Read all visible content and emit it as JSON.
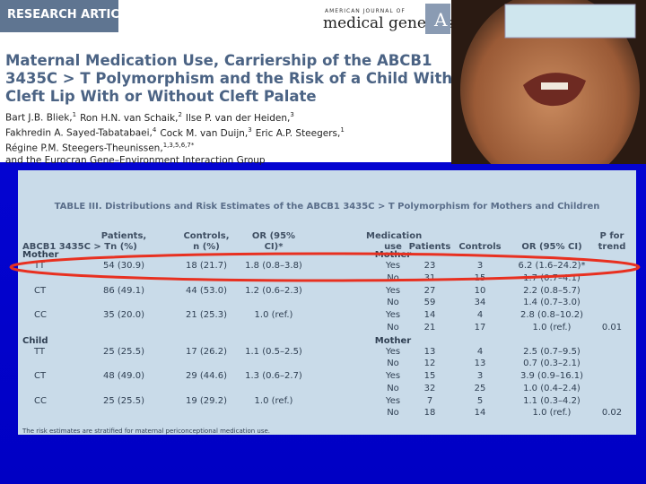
{
  "header": {
    "article_type": "RESEARCH ARTICLE",
    "journal_prefix": "AMERICAN JOURNAL OF",
    "journal_name": "medical genetics",
    "journal_part": "A",
    "title_lines": [
      "Maternal Medication Use, Carriership of the ABCB1",
      "3435C > T Polymorphism and the Risk of a Child With",
      "Cleft Lip With or Without Cleft Palate"
    ],
    "author_lines": [
      [
        {
          "name": "Bart J.B. Bliek,",
          "aff": "1"
        },
        {
          "name": "Ron H.N. van Schaik,",
          "aff": "2"
        },
        {
          "name": "Ilse P. van der Heiden,",
          "aff": "3"
        }
      ],
      [
        {
          "name": "Fakhredin A. Sayed-Tabatabaei,",
          "aff": "4"
        },
        {
          "name": "Cock M. van Duijn,",
          "aff": "3"
        },
        {
          "name": "Eric A.P. Steegers,",
          "aff": "1"
        }
      ],
      [
        {
          "name": "Régine P.M. Steegers-Theunissen,",
          "aff": "1,3,5,6,7*"
        }
      ],
      [
        {
          "name": "and the Eurocran Gene–Environment Interaction Group",
          "aff": null
        }
      ]
    ]
  },
  "table": {
    "title": "TABLE III. Distributions and Risk Estimates of the ABCB1 3435C > T Polymorphism for Mothers and Children",
    "columns": [
      "ABCB1 3435C > T",
      "Patients, n (%)",
      "Controls, n (%)",
      "OR (95% CI)*",
      "Medication use",
      "Patients",
      "Controls",
      "OR (95% CI)",
      "P for trend"
    ],
    "sections": [
      {
        "label": "Mother",
        "medication_label": "Mother",
        "rows": [
          {
            "genotype": "TT",
            "patients": "54 (30.9)",
            "controls": "18 (21.7)",
            "or": "1.8 (0.8–3.8)",
            "p_trend": null,
            "strata": [
              {
                "use": "Yes",
                "patients": "23",
                "controls": "3",
                "or": "6.2 (1.6–24.2)*"
              },
              {
                "use": "No",
                "patients": "31",
                "controls": "15",
                "or": "1.7 (0.7–4.1)"
              }
            ]
          },
          {
            "genotype": "CT",
            "patients": "86 (49.1)",
            "controls": "44 (53.0)",
            "or": "1.2 (0.6–2.3)",
            "p_trend": null,
            "strata": [
              {
                "use": "Yes",
                "patients": "27",
                "controls": "10",
                "or": "2.2 (0.8–5.7)"
              },
              {
                "use": "No",
                "patients": "59",
                "controls": "34",
                "or": "1.4 (0.7–3.0)"
              }
            ]
          },
          {
            "genotype": "CC",
            "patients": "35 (20.0)",
            "controls": "21 (25.3)",
            "or": "1.0 (ref.)",
            "p_trend": "0.01",
            "strata": [
              {
                "use": "Yes",
                "patients": "14",
                "controls": "4",
                "or": "2.8 (0.8–10.2)"
              },
              {
                "use": "No",
                "patients": "21",
                "controls": "17",
                "or": "1.0 (ref.)"
              }
            ]
          }
        ]
      },
      {
        "label": "Child",
        "medication_label": "Mother",
        "rows": [
          {
            "genotype": "TT",
            "patients": "25 (25.5)",
            "controls": "17 (26.2)",
            "or": "1.1 (0.5–2.5)",
            "p_trend": null,
            "strata": [
              {
                "use": "Yes",
                "patients": "13",
                "controls": "4",
                "or": "2.5 (0.7–9.5)"
              },
              {
                "use": "No",
                "patients": "12",
                "controls": "13",
                "or": "0.7 (0.3–2.1)"
              }
            ]
          },
          {
            "genotype": "CT",
            "patients": "48 (49.0)",
            "controls": "29 (44.6)",
            "or": "1.3 (0.6–2.7)",
            "p_trend": null,
            "strata": [
              {
                "use": "Yes",
                "patients": "15",
                "controls": "3",
                "or": "3.9 (0.9–16.1)"
              },
              {
                "use": "No",
                "patients": "32",
                "controls": "25",
                "or": "1.0 (0.4–2.4)"
              }
            ]
          },
          {
            "genotype": "CC",
            "patients": "25 (25.5)",
            "controls": "19 (29.2)",
            "or": "1.0 (ref.)",
            "p_trend": "0.02",
            "strata": [
              {
                "use": "Yes",
                "patients": "7",
                "controls": "5",
                "or": "1.1 (0.3–4.2)"
              },
              {
                "use": "No",
                "patients": "18",
                "controls": "14",
                "or": "1.0 (ref.)"
              }
            ]
          }
        ]
      }
    ],
    "footnote": "The risk estimates are stratified for maternal periconceptional medication use."
  }
}
